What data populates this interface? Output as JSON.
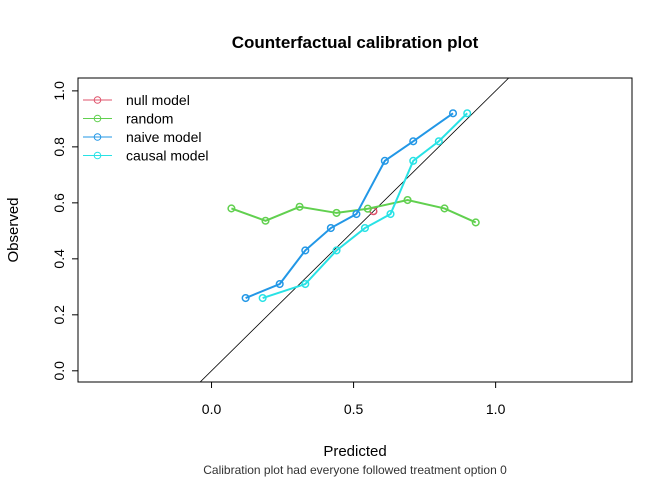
{
  "chart_data": {
    "type": "line",
    "title": "Counterfactual calibration plot",
    "xlabel": "Predicted",
    "ylabel": "Observed",
    "subtitle": "Calibration plot had everyone followed treatment option 0",
    "xlim": [
      -0.47,
      1.48
    ],
    "ylim": [
      -0.04,
      1.046
    ],
    "xticks": [
      0.0,
      0.5,
      1.0
    ],
    "xtick_labels": [
      "0.0",
      "0.5",
      "1.0"
    ],
    "yticks": [
      0.0,
      0.2,
      0.4,
      0.6,
      0.8,
      1.0
    ],
    "ytick_labels": [
      "0.0",
      "0.2",
      "0.4",
      "0.6",
      "0.8",
      "1.0"
    ],
    "grid": false,
    "legend_position": "top-left",
    "reference_line": "y = x",
    "series": [
      {
        "name": "null model",
        "color": "#DF536B",
        "x": [
          0.57
        ],
        "y": [
          0.57
        ]
      },
      {
        "name": "random",
        "color": "#61D04F",
        "x": [
          0.07,
          0.19,
          0.31,
          0.44,
          0.55,
          0.69,
          0.82,
          0.93
        ],
        "y": [
          0.58,
          0.536,
          0.586,
          0.564,
          0.579,
          0.61,
          0.58,
          0.53
        ]
      },
      {
        "name": "naive model",
        "color": "#2297E6",
        "x": [
          0.12,
          0.24,
          0.33,
          0.42,
          0.51,
          0.61,
          0.71,
          0.85
        ],
        "y": [
          0.26,
          0.31,
          0.43,
          0.51,
          0.56,
          0.75,
          0.82,
          0.92
        ]
      },
      {
        "name": "causal model",
        "color": "#28E2E5",
        "x": [
          0.18,
          0.33,
          0.44,
          0.54,
          0.63,
          0.71,
          0.8,
          0.9
        ],
        "y": [
          0.26,
          0.31,
          0.43,
          0.51,
          0.56,
          0.75,
          0.82,
          0.92
        ]
      }
    ]
  }
}
